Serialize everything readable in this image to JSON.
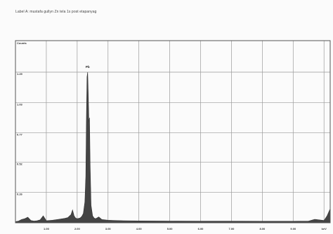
{
  "chart_data": {
    "type": "area",
    "title": "Label A: mustafa gullyn Zn tela 1s post etapanyag",
    "ylabel": "Counts",
    "xlabel": "keV",
    "xlim": [
      0,
      10.2
    ],
    "ylim": [
      0,
      1560
    ],
    "x_ticks": [
      "1.00",
      "2.00",
      "3.00",
      "4.00",
      "5.00",
      "6.00",
      "7.00",
      "8.00",
      "9.00",
      "10.0"
    ],
    "x_ticks_labeled": [
      "1.00",
      "2.00",
      "3.00",
      "4.00",
      "5.00",
      "6.00",
      "7.00",
      "8.00",
      "9.00",
      "keV"
    ],
    "y_ticks": [
      "1.29",
      "1.03",
      "0.77",
      "0.52",
      "0.26"
    ],
    "y_tick_values": [
      1290,
      1030,
      770,
      520,
      260
    ],
    "grid": true,
    "fill_color": "#444444",
    "peak_labels": [
      {
        "label": "Pb",
        "x": 2.34,
        "y": 1290
      }
    ],
    "series": [
      {
        "x": [
          0.0,
          0.1,
          0.2,
          0.3,
          0.4,
          0.5,
          0.6,
          0.7,
          0.8,
          0.9,
          1.0,
          1.2,
          1.4,
          1.6,
          1.7,
          1.8,
          1.85,
          1.9,
          1.95,
          2.0,
          2.05,
          2.1,
          2.15,
          2.2,
          2.25,
          2.28,
          2.3,
          2.32,
          2.34,
          2.36,
          2.38,
          2.4,
          2.42,
          2.45,
          2.5,
          2.55,
          2.6,
          2.7,
          2.8,
          2.9,
          3.0,
          3.2,
          3.5,
          4.0,
          5.0,
          6.0,
          7.0,
          8.0,
          9.0,
          9.5,
          9.7,
          10.0,
          10.1,
          10.2
        ],
        "y": [
          10,
          15,
          28,
          35,
          48,
          20,
          15,
          18,
          25,
          60,
          18,
          22,
          30,
          38,
          45,
          70,
          110,
          60,
          40,
          35,
          38,
          42,
          55,
          80,
          180,
          400,
          900,
          1250,
          1290,
          1100,
          860,
          900,
          500,
          150,
          60,
          40,
          35,
          50,
          28,
          25,
          22,
          20,
          18,
          16,
          15,
          14,
          14,
          13,
          13,
          15,
          30,
          20,
          60,
          120
        ]
      }
    ]
  }
}
